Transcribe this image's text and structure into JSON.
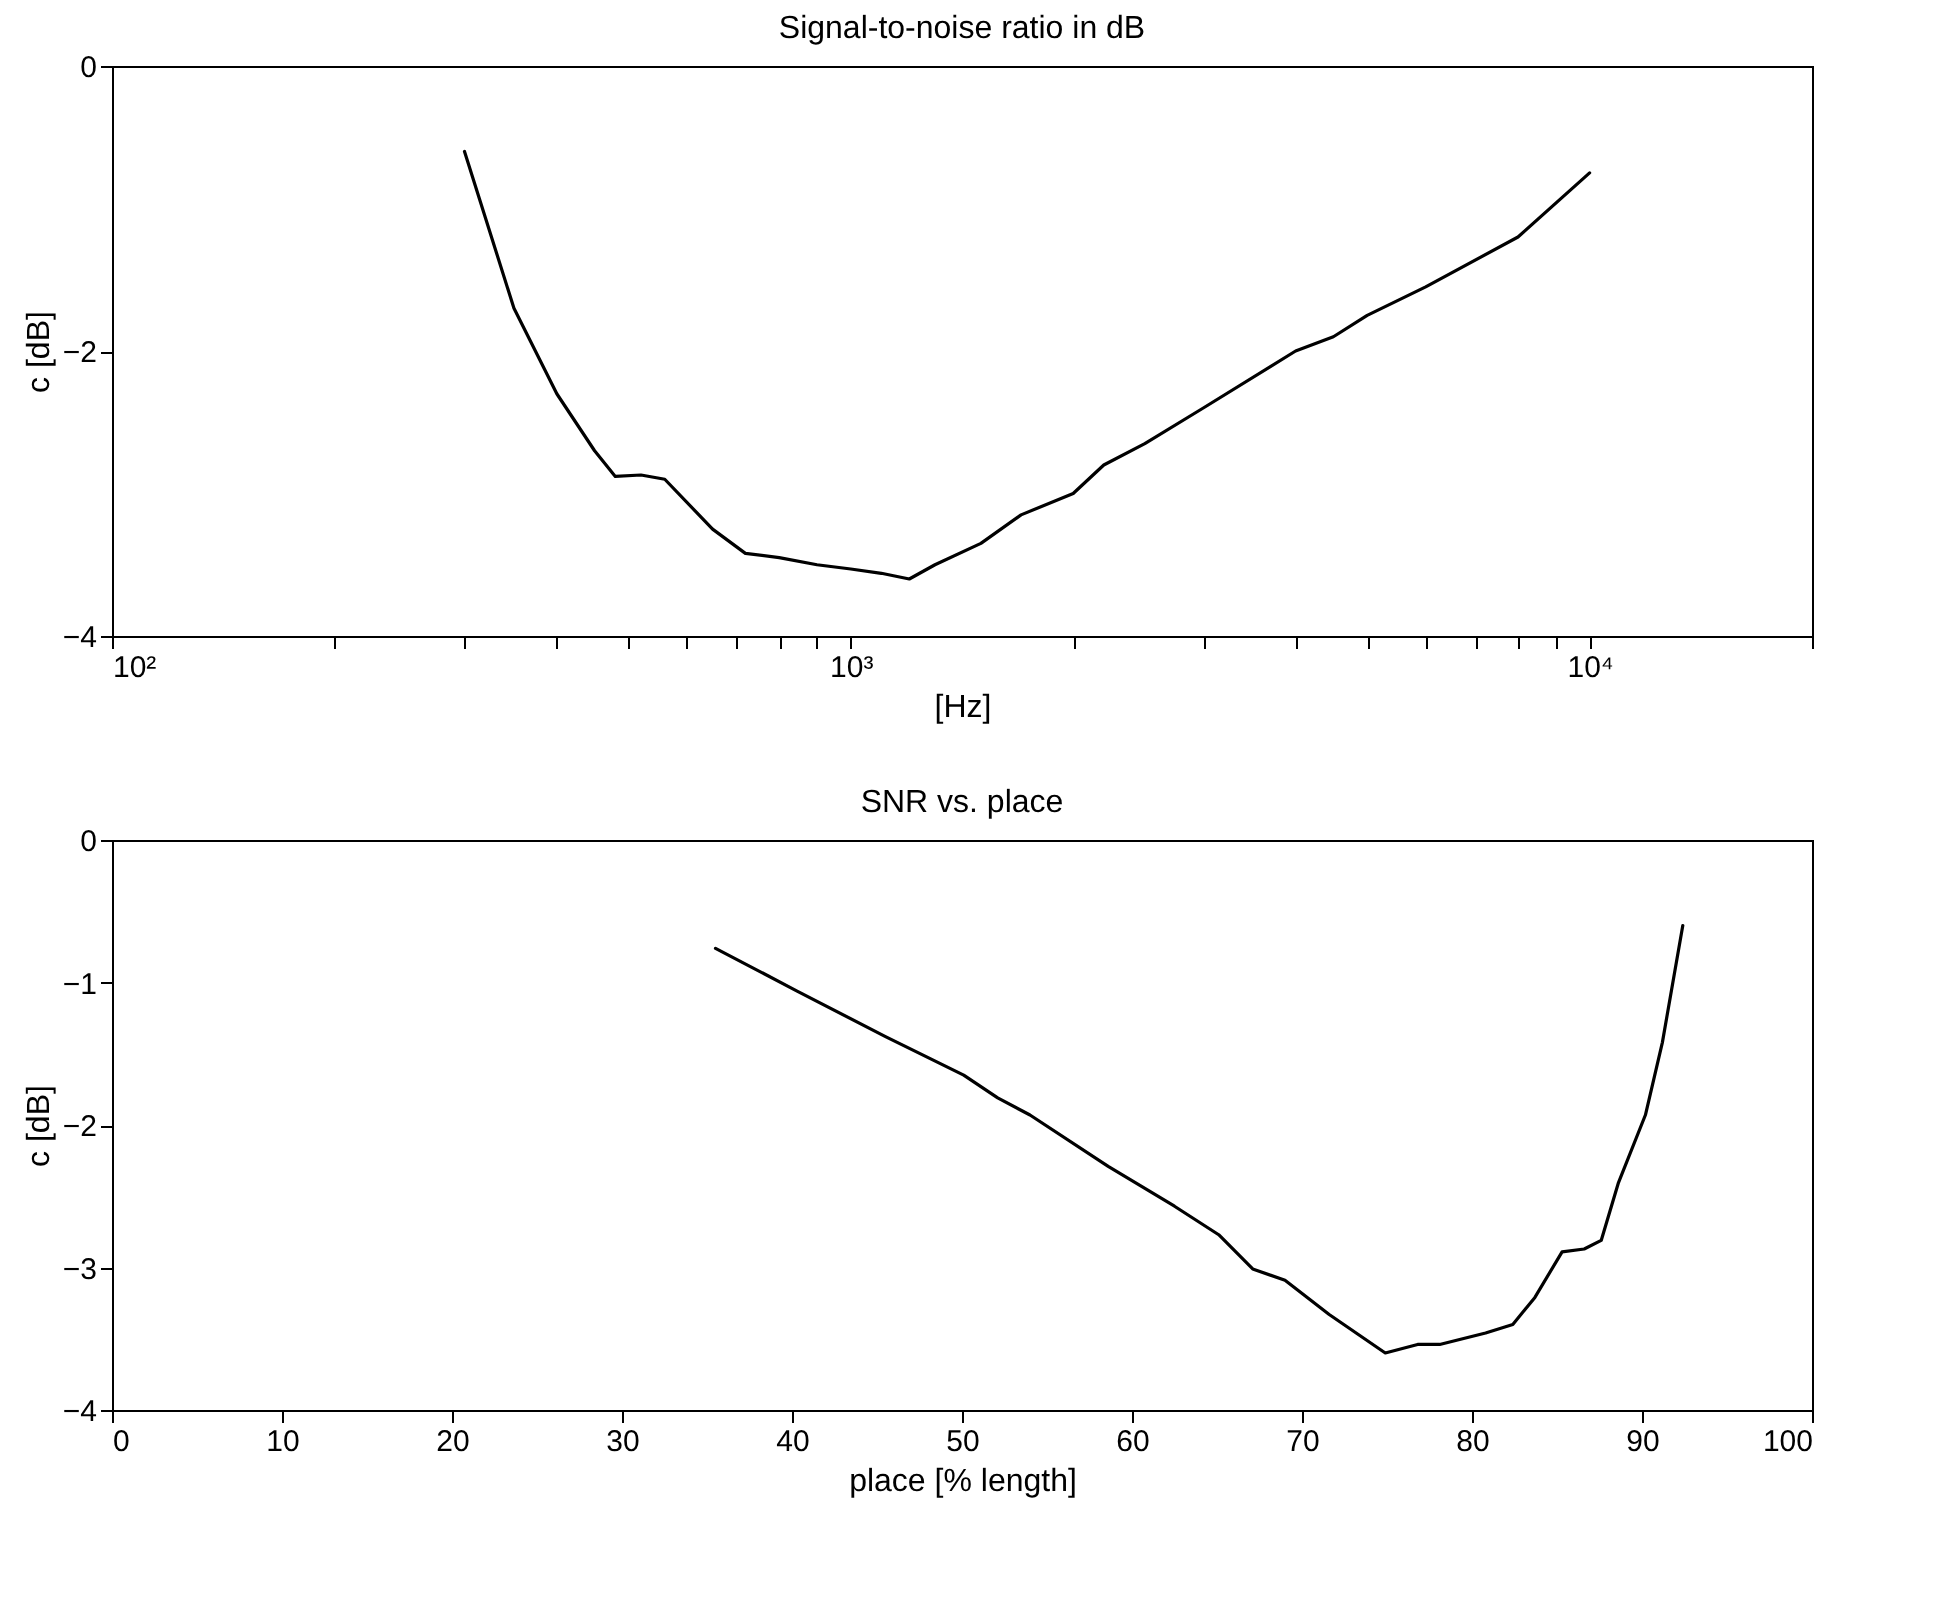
{
  "chart_data": [
    {
      "type": "line",
      "title": "Signal-to-noise ratio in dB",
      "xlabel": "[Hz]",
      "ylabel": "c [dB]",
      "log": "x",
      "grid": false,
      "marker": "none",
      "line_style": "solid",
      "xlim": [
        100,
        20000
      ],
      "ylim": [
        -4,
        0
      ],
      "xticks": [
        {
          "value": 100,
          "label": "10²"
        },
        {
          "value": 200,
          "label": null
        },
        {
          "value": 300,
          "label": null
        },
        {
          "value": 400,
          "label": null
        },
        {
          "value": 500,
          "label": null
        },
        {
          "value": 600,
          "label": null
        },
        {
          "value": 700,
          "label": null
        },
        {
          "value": 800,
          "label": null
        },
        {
          "value": 900,
          "label": null
        },
        {
          "value": 1000,
          "label": "10³"
        },
        {
          "value": 2000,
          "label": null
        },
        {
          "value": 3000,
          "label": null
        },
        {
          "value": 4000,
          "label": null
        },
        {
          "value": 5000,
          "label": null
        },
        {
          "value": 6000,
          "label": null
        },
        {
          "value": 7000,
          "label": null
        },
        {
          "value": 8000,
          "label": null
        },
        {
          "value": 9000,
          "label": null
        },
        {
          "value": 10000,
          "label": "10⁴"
        },
        {
          "value": 20000,
          "label": null
        }
      ],
      "yticks": [
        -4,
        -2,
        0
      ],
      "x": [
        300,
        350,
        400,
        450,
        480,
        520,
        560,
        650,
        720,
        800,
        900,
        1000,
        1100,
        1200,
        1300,
        1500,
        1700,
        2000,
        2200,
        2500,
        3000,
        4000,
        4500,
        5000,
        6000,
        8000,
        10000
      ],
      "series": [
        {
          "color": "#000000",
          "values": [
            -0.6,
            -1.7,
            -2.3,
            -2.7,
            -2.88,
            -2.87,
            -2.9,
            -3.25,
            -3.42,
            -3.45,
            -3.5,
            -3.53,
            -3.56,
            -3.6,
            -3.5,
            -3.35,
            -3.15,
            -3.0,
            -2.8,
            -2.65,
            -2.4,
            -2.0,
            -1.9,
            -1.75,
            -1.55,
            -1.2,
            -0.75
          ]
        }
      ]
    },
    {
      "type": "line",
      "title": "SNR vs. place",
      "xlabel": "place [% length]",
      "ylabel": "c [dB]",
      "grid": false,
      "marker": "none",
      "line_style": "solid",
      "xlim": [
        0,
        100
      ],
      "ylim": [
        -4,
        0
      ],
      "xticks": [
        0,
        10,
        20,
        30,
        40,
        50,
        60,
        70,
        80,
        90,
        100
      ],
      "yticks": [
        -4,
        -3,
        -2,
        -1,
        0
      ],
      "x": [
        35.5,
        40.3,
        45.5,
        50.1,
        52.1,
        54,
        58.6,
        62.5,
        65.1,
        67.1,
        69,
        71.6,
        74.9,
        76.8,
        78.1,
        80.8,
        82.4,
        83.7,
        85.3,
        86.6,
        87.6,
        88.6,
        90.2,
        91.2,
        92.4
      ],
      "series": [
        {
          "color": "#000000",
          "values": [
            -0.76,
            -1.06,
            -1.38,
            -1.65,
            -1.81,
            -1.93,
            -2.29,
            -2.57,
            -2.77,
            -3.01,
            -3.09,
            -3.33,
            -3.6,
            -3.54,
            -3.54,
            -3.46,
            -3.4,
            -3.21,
            -2.89,
            -2.87,
            -2.81,
            -2.41,
            -1.93,
            -1.42,
            -0.6
          ]
        }
      ]
    }
  ]
}
